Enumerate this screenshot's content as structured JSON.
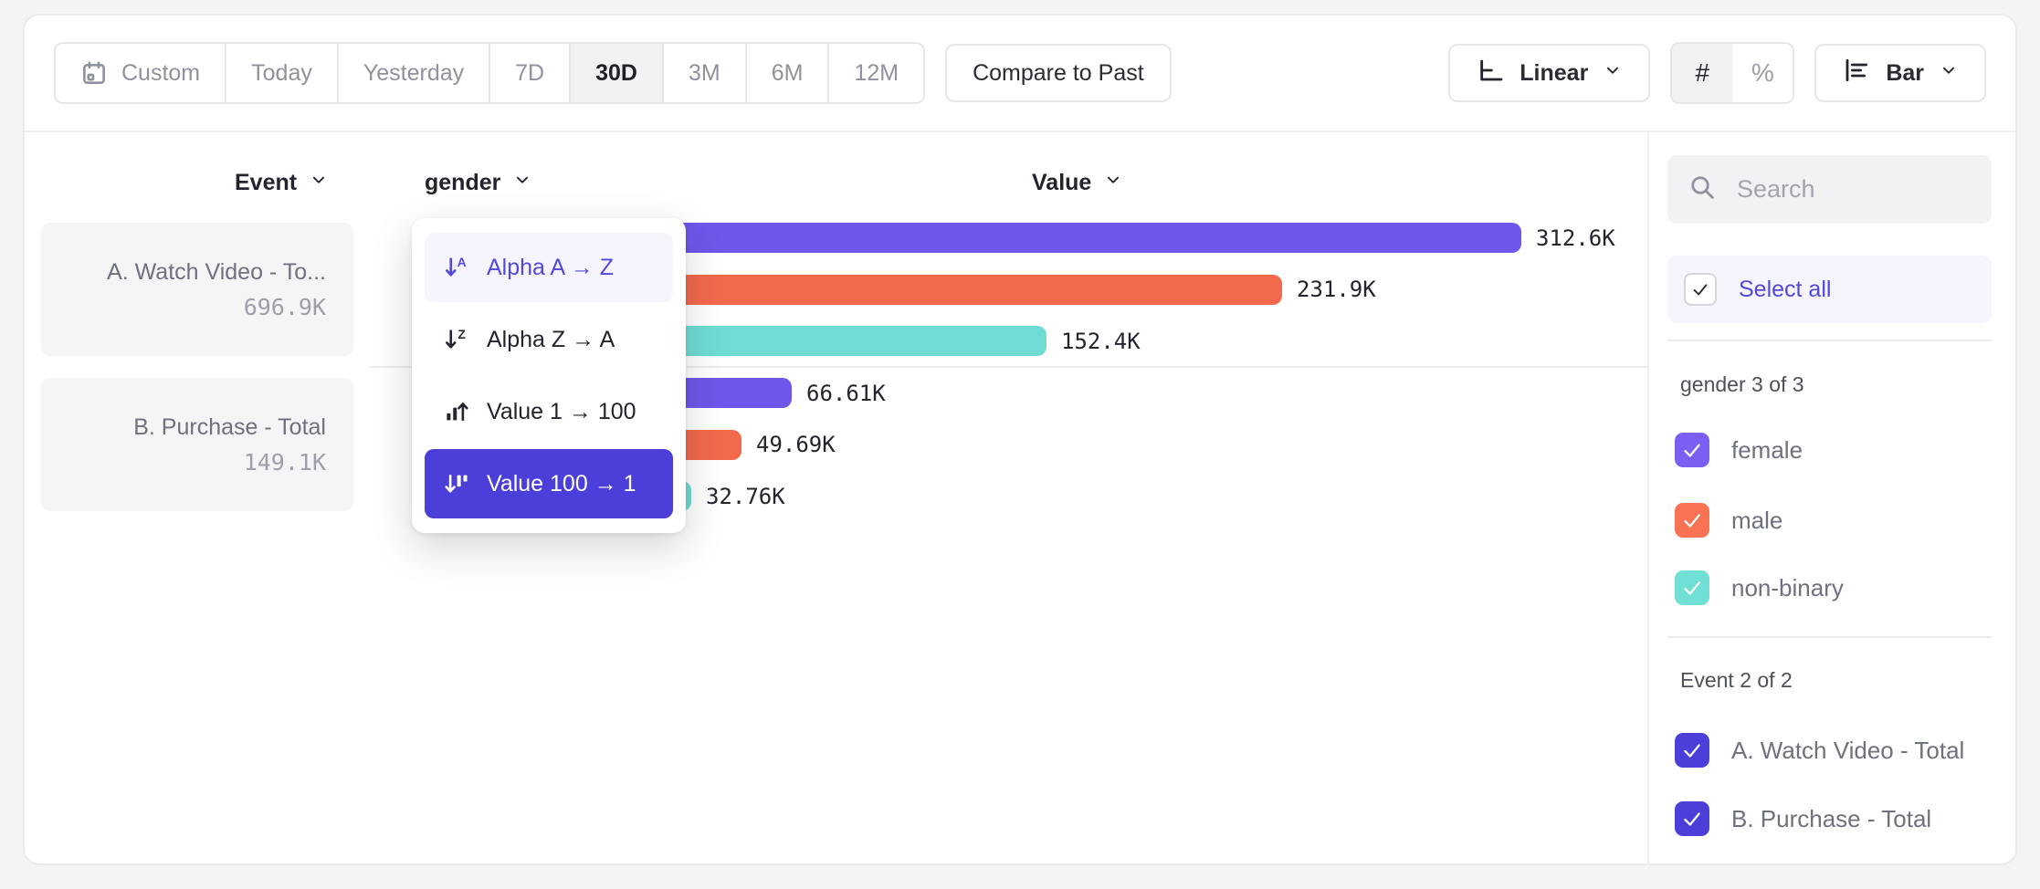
{
  "toolbar": {
    "date_ranges": [
      {
        "label": "Custom",
        "icon": "calendar-icon",
        "selected": false
      },
      {
        "label": "Today",
        "selected": false
      },
      {
        "label": "Yesterday",
        "selected": false
      },
      {
        "label": "7D",
        "selected": false
      },
      {
        "label": "30D",
        "selected": true
      },
      {
        "label": "3M",
        "selected": false
      },
      {
        "label": "6M",
        "selected": false
      },
      {
        "label": "12M",
        "selected": false
      }
    ],
    "compare_label": "Compare to Past",
    "scale": {
      "label": "Linear",
      "icon": "linear-axis-icon"
    },
    "format_toggle": [
      {
        "label": "#",
        "name": "absolute-numbers",
        "selected": true
      },
      {
        "label": "%",
        "name": "percentages",
        "selected": false
      }
    ],
    "chart_type": {
      "label": "Bar",
      "icon": "horizontal-bars-icon"
    }
  },
  "columns": {
    "event": "Event",
    "segment": "gender",
    "value": "Value"
  },
  "sort_menu": {
    "items": [
      {
        "label": "Alpha A → Z",
        "icon": "sort-alpha-asc-icon",
        "state": "hover"
      },
      {
        "label": "Alpha Z → A",
        "icon": "sort-alpha-desc-icon",
        "state": "default"
      },
      {
        "label": "Value 1 → 100",
        "icon": "sort-value-asc-icon",
        "state": "default"
      },
      {
        "label": "Value 100 → 1",
        "icon": "sort-value-desc-icon",
        "state": "selected"
      }
    ]
  },
  "chart_data": {
    "type": "bar",
    "orientation": "horizontal",
    "value_axis_label": "Value",
    "segment_property": "gender",
    "series_colors": {
      "female": "#6e57ea",
      "male": "#f3694c",
      "non-binary": "#6edcd2"
    },
    "groups": [
      {
        "event": "A. Watch Video - Total",
        "event_label_truncated": "A. Watch Video - To...",
        "total_display": "696.9K",
        "total_value": 696900,
        "bars": [
          {
            "segment": "female",
            "value": 312600,
            "display": "312.6K",
            "color": "#6e57ea"
          },
          {
            "segment": "male",
            "value": 231900,
            "display": "231.9K",
            "color": "#f3694c"
          },
          {
            "segment": "non-binary",
            "value": 152400,
            "display": "152.4K",
            "color": "#6edcd2"
          }
        ]
      },
      {
        "event": "B. Purchase - Total",
        "event_label_truncated": "B. Purchase - Total",
        "total_display": "149.1K",
        "total_value": 149100,
        "bars": [
          {
            "segment": "female",
            "value": 66610,
            "display": "66.61K",
            "color": "#6e57ea"
          },
          {
            "segment": "male",
            "value": 49690,
            "display": "49.69K",
            "color": "#f3694c"
          },
          {
            "segment": "non-binary",
            "value": 32760,
            "display": "32.76K",
            "color": "#6edcd2"
          }
        ]
      }
    ]
  },
  "sidebar": {
    "search_placeholder": "Search",
    "search_value": "",
    "select_all_label": "Select all",
    "groups": [
      {
        "header": "gender 3 of 3",
        "items": [
          {
            "label": "female",
            "checked": true,
            "color": "#7b5ff2"
          },
          {
            "label": "male",
            "checked": true,
            "color": "#f97253"
          },
          {
            "label": "non-binary",
            "checked": true,
            "color": "#70dfd5"
          }
        ]
      },
      {
        "header": "Event 2 of 2",
        "items": [
          {
            "label": "A. Watch Video - Total",
            "checked": true,
            "color": "#4c3fd9"
          },
          {
            "label": "B. Purchase - Total",
            "checked": true,
            "color": "#4c3fd9"
          }
        ]
      }
    ]
  },
  "colors": {
    "accent_purple": "#5248d9",
    "selected_menu_bg": "#4c3fd9",
    "hover_menu_bg": "#f6f5fd",
    "card_bg": "#ffffff",
    "page_bg": "#f4f4f5"
  }
}
